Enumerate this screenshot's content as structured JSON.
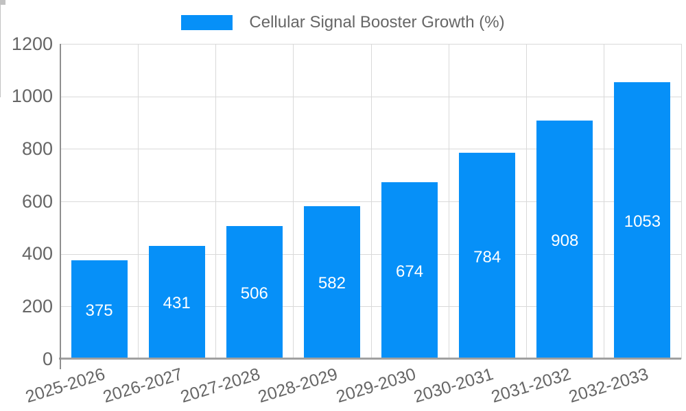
{
  "legend": {
    "label": "Cellular Signal Booster Growth (%)"
  },
  "chart_data": {
    "type": "bar",
    "title": "Cellular Signal Booster Growth (%)",
    "categories": [
      "2025-2026",
      "2026-2027",
      "2027-2028",
      "2028-2029",
      "2029-2030",
      "2030-2031",
      "2031-2032",
      "2032-2033"
    ],
    "values": [
      375,
      431,
      506,
      582,
      674,
      784,
      908,
      1053
    ],
    "value_labels": [
      "375",
      "431",
      "506",
      "582",
      "674",
      "784",
      "908",
      "1053"
    ],
    "xlabel": "",
    "ylabel": "",
    "ylim": [
      0,
      1200
    ],
    "yticks": [
      0,
      200,
      400,
      600,
      800,
      1000,
      1200
    ],
    "ytick_labels": [
      "0",
      "200",
      "400",
      "600",
      "800",
      "1000",
      "1200"
    ],
    "grid": true,
    "legend_position": "top-center",
    "colors": {
      "bar": "#0690f8",
      "value_text": "#ffffff",
      "axis_text": "#666666",
      "gridline": "#d9d9d9",
      "axis_line": "#9e9e9e",
      "background": "#ffffff"
    }
  }
}
